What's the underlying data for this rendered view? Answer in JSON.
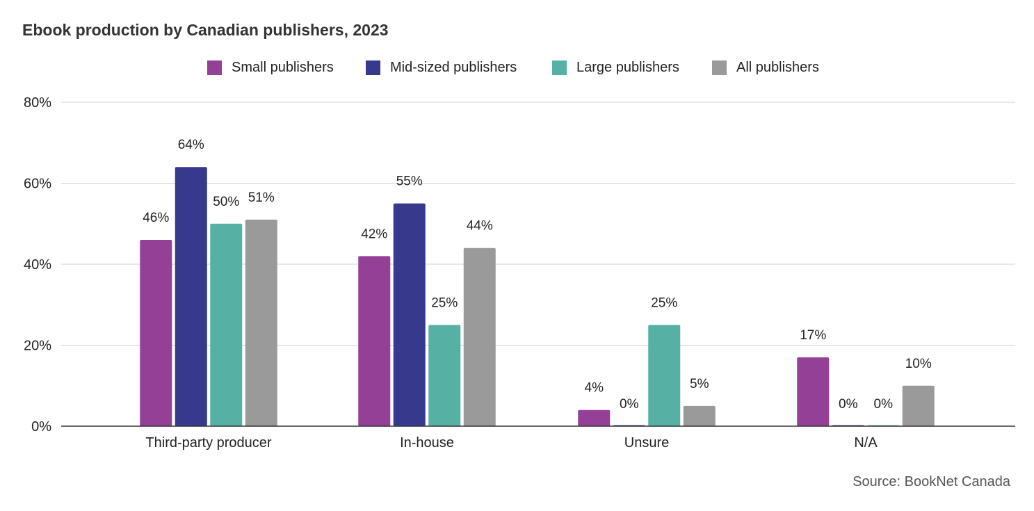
{
  "chart_data": {
    "type": "bar",
    "title": "Ebook production by Canadian publishers, 2023",
    "xlabel": "",
    "ylabel": "",
    "ylim": [
      0,
      80
    ],
    "yticks": [
      "0%",
      "20%",
      "40%",
      "60%",
      "80%"
    ],
    "ytick_values": [
      0,
      20,
      40,
      60,
      80
    ],
    "grid": true,
    "legend_position": "top-center",
    "categories": [
      "Third-party producer",
      "In-house",
      "Unsure",
      "N/A"
    ],
    "series": [
      {
        "name": "Small publishers",
        "color": "#944097",
        "values": [
          46,
          42,
          4,
          17
        ],
        "labels": [
          "46%",
          "42%",
          "4%",
          "17%"
        ]
      },
      {
        "name": "Mid-sized publishers",
        "color": "#37398d",
        "values": [
          64,
          55,
          0,
          0
        ],
        "labels": [
          "64%",
          "55%",
          "0%",
          "0%"
        ]
      },
      {
        "name": "Large publishers",
        "color": "#56b0a3",
        "values": [
          50,
          25,
          25,
          0
        ],
        "labels": [
          "50%",
          "25%",
          "25%",
          "0%"
        ]
      },
      {
        "name": "All publishers",
        "color": "#9a9a9a",
        "values": [
          51,
          44,
          5,
          10
        ],
        "labels": [
          "51%",
          "44%",
          "5%",
          "10%"
        ]
      }
    ],
    "source": "Source: BookNet Canada"
  }
}
